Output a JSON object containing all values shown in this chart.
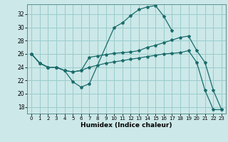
{
  "background_color": "#cce8e8",
  "grid_color": "#99cccc",
  "line_color": "#1a6b6b",
  "xlabel": "Humidex (Indice chaleur)",
  "xlim": [
    -0.5,
    23.5
  ],
  "ylim": [
    17.0,
    33.5
  ],
  "yticks": [
    18,
    20,
    22,
    24,
    26,
    28,
    30,
    32
  ],
  "xticks": [
    0,
    1,
    2,
    3,
    4,
    5,
    6,
    7,
    8,
    9,
    10,
    11,
    12,
    13,
    14,
    15,
    16,
    17,
    18,
    19,
    20,
    21,
    22,
    23
  ],
  "lines": [
    {
      "x": [
        0,
        1,
        2,
        3,
        4,
        5,
        6,
        7,
        10,
        11,
        12,
        13,
        14,
        15,
        16,
        17
      ],
      "y": [
        26.0,
        24.6,
        24.0,
        24.0,
        23.5,
        21.8,
        21.0,
        21.5,
        30.0,
        30.7,
        31.8,
        32.7,
        33.1,
        33.3,
        31.7,
        29.5
      ]
    },
    {
      "x": [
        0,
        1,
        2,
        3,
        4,
        5,
        6,
        7,
        8,
        9,
        10,
        11,
        12,
        13,
        14,
        15,
        16,
        17,
        18,
        19,
        20,
        21,
        22,
        23
      ],
      "y": [
        26.0,
        24.6,
        24.0,
        24.0,
        23.5,
        23.3,
        23.5,
        25.5,
        25.7,
        25.9,
        26.1,
        26.2,
        26.3,
        26.5,
        27.0,
        27.3,
        27.7,
        28.1,
        28.5,
        28.7,
        26.5,
        24.7,
        20.5,
        17.6
      ]
    },
    {
      "x": [
        0,
        1,
        2,
        3,
        4,
        5,
        6,
        7,
        8,
        9,
        10,
        11,
        12,
        13,
        14,
        15,
        16,
        17,
        18,
        19,
        20,
        21,
        22,
        23
      ],
      "y": [
        26.0,
        24.6,
        24.0,
        24.0,
        23.5,
        23.3,
        23.5,
        24.0,
        24.3,
        24.6,
        24.8,
        25.0,
        25.2,
        25.4,
        25.6,
        25.8,
        26.0,
        26.1,
        26.2,
        26.5,
        24.7,
        20.5,
        17.6,
        17.6
      ]
    }
  ]
}
